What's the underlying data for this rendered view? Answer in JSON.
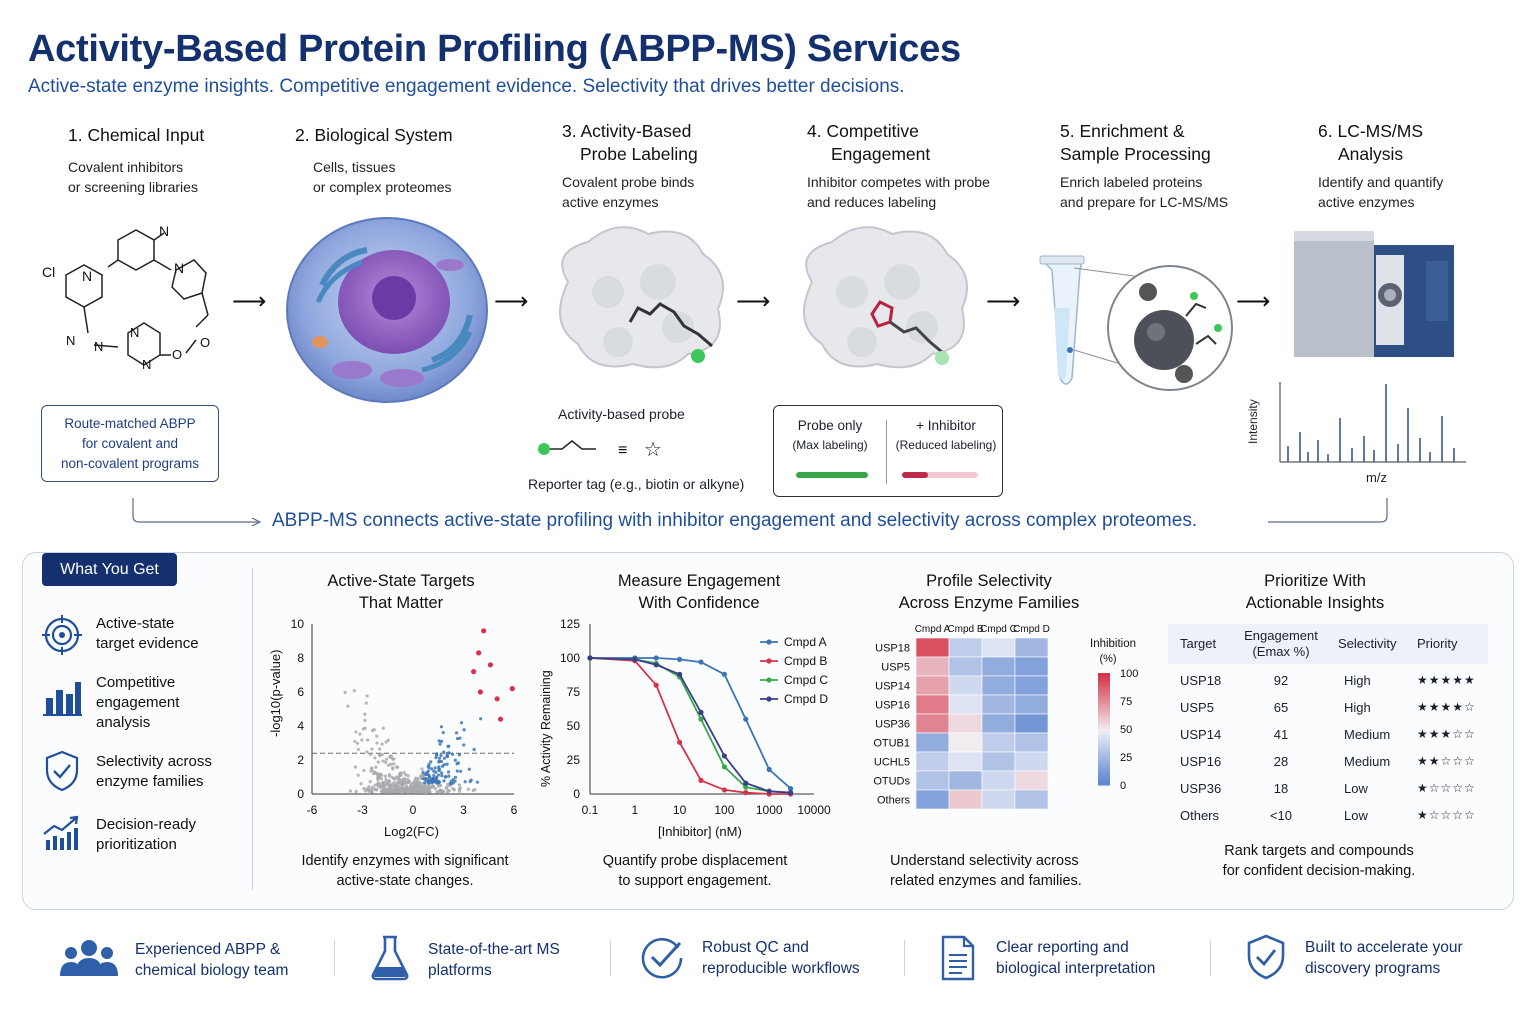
{
  "header": {
    "title": "Activity-Based Protein Profiling (ABPP-MS) Services",
    "subtitle": "Active-state enzyme insights. Competitive engagement evidence. Selectivity that drives better decisions."
  },
  "steps": [
    {
      "title_1": "1. Chemical Input",
      "title_2": "",
      "desc_1": "Covalent inhibitors",
      "desc_2": "or screening libraries"
    },
    {
      "title_1": "2. Biological System",
      "title_2": "",
      "desc_1": "Cells, tissues",
      "desc_2": "or complex proteomes"
    },
    {
      "title_1": "3. Activity-Based",
      "title_2": "Probe Labeling",
      "desc_1": "Covalent probe binds",
      "desc_2": "active enzymes"
    },
    {
      "title_1": "4. Competitive",
      "title_2": "Engagement",
      "desc_1": "Inhibitor competes with probe",
      "desc_2": "and reduces labeling"
    },
    {
      "title_1": "5. Enrichment &",
      "title_2": "Sample Processing",
      "desc_1": "Enrich labeled proteins",
      "desc_2": "and prepare for LC-MS/MS"
    },
    {
      "title_1": "6. LC-MS/MS",
      "title_2": "Analysis",
      "desc_1": "Identify and quantify",
      "desc_2": "active enzymes"
    }
  ],
  "route_box": {
    "line1": "Route-matched ABPP",
    "line2": "for covalent and",
    "line3": "non-covalent programs"
  },
  "probe": {
    "label": "Activity-based probe",
    "reporter": "Reporter tag (e.g., biotin or alkyne)",
    "equiv": "≡",
    "star": "☆"
  },
  "competition": {
    "a_title": "Probe only",
    "a_sub": "(Max labeling)",
    "b_title": "+ Inhibitor",
    "b_sub": "(Reduced labeling)"
  },
  "spectrum": {
    "ylabel": "Intensity",
    "xlabel": "m/z"
  },
  "molecule_atoms": {
    "n1": "N",
    "cl": "Cl",
    "n2": "N",
    "n3": "N",
    "n4": "N",
    "n5": "N",
    "n6": "N",
    "n7": "N",
    "o1": "O",
    "o2": "O"
  },
  "connector": "ABPP-MS connects active-state profiling with inhibitor engagement and selectivity across complex proteomes.",
  "panel": {
    "badge": "What You Get",
    "features": [
      {
        "icon": "target-icon",
        "l1": "Active-state",
        "l2": "target evidence",
        "l3": ""
      },
      {
        "icon": "bar-chart-icon",
        "l1": "Competitive",
        "l2": "engagement",
        "l3": "analysis"
      },
      {
        "icon": "shield-check-icon",
        "l1": "Selectivity across",
        "l2": "enzyme families",
        "l3": ""
      },
      {
        "icon": "trend-up-icon",
        "l1": "Decision-ready",
        "l2": "prioritization",
        "l3": ""
      }
    ],
    "columns": [
      {
        "t1": "Active-State Targets",
        "t2": "That Matter",
        "c1": "Identify enzymes with significant",
        "c2": "active-state changes."
      },
      {
        "t1": "Measure Engagement",
        "t2": "With Confidence",
        "c1": "Quantify probe displacement",
        "c2": "to support engagement."
      },
      {
        "t1": "Profile Selectivity",
        "t2": "Across Enzyme Families",
        "c1": "Understand selectivity across",
        "c2": "related enzymes and families."
      },
      {
        "t1": "Prioritize With",
        "t2": "Actionable Insights",
        "c1": "Rank targets and compounds",
        "c2": "for confident decision-making."
      }
    ]
  },
  "colors": {
    "navy": "#14306e",
    "accent": "#1f4e9c",
    "red": "#d6334a",
    "green": "#3aa84a",
    "blue": "#3b75b5"
  },
  "chart_data": [
    {
      "type": "scatter",
      "title": "Active-State Targets That Matter",
      "xlabel": "Log2(FC)",
      "ylabel": "-log10(p-value)",
      "xlim": [
        -6,
        6
      ],
      "ylim": [
        0,
        10
      ],
      "xticks": [
        "-6",
        "-3",
        "0",
        "3",
        "6"
      ],
      "yticks": [
        "0",
        "2",
        "4",
        "6",
        "8",
        "10"
      ],
      "threshold_y": 2.4,
      "highlighted_points": [
        {
          "x": 4.2,
          "y": 9.6
        },
        {
          "x": 3.9,
          "y": 8.3
        },
        {
          "x": 4.6,
          "y": 7.6
        },
        {
          "x": 5.9,
          "y": 6.2
        },
        {
          "x": 4.0,
          "y": 6.0
        },
        {
          "x": 5.0,
          "y": 5.6
        },
        {
          "x": 5.2,
          "y": 4.4
        },
        {
          "x": 3.6,
          "y": 7.2
        }
      ]
    },
    {
      "type": "line",
      "title": "Measure Engagement With Confidence",
      "xlabel": "[Inhibitor] (nM)",
      "ylabel": "% Activity Remaining",
      "xscale": "log",
      "xticks": [
        "0.1",
        "1",
        "10",
        "100",
        "1000",
        "10000"
      ],
      "yticks": [
        "0",
        "25",
        "50",
        "75",
        "100",
        "125"
      ],
      "ylim": [
        0,
        125
      ],
      "x": [
        0.1,
        1,
        3,
        10,
        30,
        100,
        300,
        1000,
        3000
      ],
      "series": [
        {
          "name": "Cmpd A",
          "color": "#3b75b5",
          "values": [
            100,
            100,
            100,
            99,
            97,
            88,
            55,
            18,
            4
          ]
        },
        {
          "name": "Cmpd B",
          "color": "#d6334a",
          "values": [
            100,
            98,
            80,
            38,
            10,
            3,
            1,
            0,
            0
          ]
        },
        {
          "name": "Cmpd C",
          "color": "#3aa84a",
          "values": [
            100,
            99,
            96,
            86,
            55,
            20,
            5,
            2,
            1
          ]
        },
        {
          "name": "Cmpd D",
          "color": "#3a3f8a",
          "values": [
            100,
            99,
            95,
            88,
            60,
            28,
            8,
            2,
            1
          ]
        }
      ]
    },
    {
      "type": "heatmap",
      "title": "Profile Selectivity Across Enzyme Families",
      "columns": [
        "Cmpd A",
        "Cmpd B",
        "Cmpd C",
        "Cmpd D"
      ],
      "rows": [
        "USP18",
        "USP5",
        "USP14",
        "USP16",
        "USP36",
        "OTUB1",
        "UCHL5",
        "OTUDs",
        "Others"
      ],
      "values": [
        [
          92,
          35,
          45,
          25
        ],
        [
          65,
          30,
          20,
          15
        ],
        [
          70,
          40,
          20,
          15
        ],
        [
          80,
          45,
          25,
          20
        ],
        [
          78,
          55,
          20,
          10
        ],
        [
          20,
          50,
          35,
          30
        ],
        [
          35,
          45,
          30,
          40
        ],
        [
          30,
          25,
          40,
          55
        ],
        [
          15,
          60,
          40,
          30
        ]
      ],
      "colorbar_label": "Inhibition (%)",
      "colorbar_ticks": [
        "100",
        "75",
        "50",
        "25",
        "0"
      ]
    },
    {
      "type": "table",
      "title": "Prioritize With Actionable Insights",
      "headers": [
        "Target",
        "Engagement\n(Emax %)",
        "Selectivity",
        "Priority"
      ],
      "header_1": "Target",
      "header_2a": "Engagement",
      "header_2b": "(Emax %)",
      "header_3": "Selectivity",
      "header_4": "Priority",
      "rows": [
        {
          "target": "USP18",
          "emax": "92",
          "selectivity": "High",
          "stars": "★★★★★"
        },
        {
          "target": "USP5",
          "emax": "65",
          "selectivity": "High",
          "stars": "★★★★☆"
        },
        {
          "target": "USP14",
          "emax": "41",
          "selectivity": "Medium",
          "stars": "★★★☆☆"
        },
        {
          "target": "USP16",
          "emax": "28",
          "selectivity": "Medium",
          "stars": "★★☆☆☆"
        },
        {
          "target": "USP36",
          "emax": "18",
          "selectivity": "Low",
          "stars": "★☆☆☆☆"
        },
        {
          "target": "Others",
          "emax": "<10",
          "selectivity": "Low",
          "stars": "★☆☆☆☆"
        }
      ]
    }
  ],
  "footer": [
    {
      "icon": "team-icon",
      "l1": "Experienced ABPP &",
      "l2": "chemical biology team"
    },
    {
      "icon": "flask-icon",
      "l1": "State-of-the-art MS",
      "l2": "platforms"
    },
    {
      "icon": "check-circle-icon",
      "l1": "Robust QC and",
      "l2": "reproducible workflows"
    },
    {
      "icon": "document-icon",
      "l1": "Clear reporting and",
      "l2": "biological interpretation"
    },
    {
      "icon": "shield-check-icon",
      "l1": "Built to accelerate your",
      "l2": "discovery programs"
    }
  ]
}
